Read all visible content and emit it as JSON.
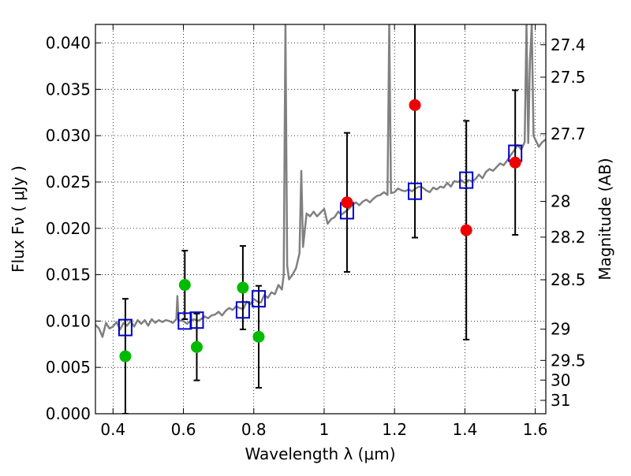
{
  "chart_data": {
    "type": "scatter",
    "xlabel": "Wavelength  λ (μm)",
    "ylabel": "Flux  Fν  ( μJy )",
    "ylabel_right": "Magnitude (AB)",
    "xlim": [
      0.35,
      1.63
    ],
    "ylim": [
      0.0,
      0.042
    ],
    "grid": true,
    "x_ticks": [
      {
        "value": 0.4,
        "label": "0.4"
      },
      {
        "value": 0.6,
        "label": "0.6"
      },
      {
        "value": 0.8,
        "label": "0.8"
      },
      {
        "value": 1.0,
        "label": "1"
      },
      {
        "value": 1.2,
        "label": "1.2"
      },
      {
        "value": 1.4,
        "label": "1.4"
      },
      {
        "value": 1.6,
        "label": "1.6"
      }
    ],
    "y_ticks": [
      {
        "value": 0.0,
        "label": "0.000"
      },
      {
        "value": 0.005,
        "label": "0.005"
      },
      {
        "value": 0.01,
        "label": "0.010"
      },
      {
        "value": 0.015,
        "label": "0.015"
      },
      {
        "value": 0.02,
        "label": "0.020"
      },
      {
        "value": 0.025,
        "label": "0.025"
      },
      {
        "value": 0.03,
        "label": "0.030"
      },
      {
        "value": 0.035,
        "label": "0.035"
      },
      {
        "value": 0.04,
        "label": "0.040"
      }
    ],
    "mag_ticks": [
      {
        "mag": 27.4,
        "label": "27.4"
      },
      {
        "mag": 27.5,
        "label": "27.5"
      },
      {
        "mag": 27.7,
        "label": "27.7"
      },
      {
        "mag": 28,
        "label": "28"
      },
      {
        "mag": 28.2,
        "label": "28.2"
      },
      {
        "mag": 28.5,
        "label": "28.5"
      },
      {
        "mag": 29,
        "label": "29"
      },
      {
        "mag": 29.5,
        "label": "29.5"
      },
      {
        "mag": 30,
        "label": "30"
      },
      {
        "mag": 31,
        "label": "31"
      }
    ],
    "colors": {
      "model": "#808080",
      "synthetic": "#0000cc",
      "optical": "#00bb00",
      "nir": "#ee0000",
      "errorbar": "#000000"
    },
    "model_spectrum": [
      [
        0.35,
        0.0096
      ],
      [
        0.36,
        0.0092
      ],
      [
        0.37,
        0.0083
      ],
      [
        0.38,
        0.0098
      ],
      [
        0.39,
        0.0092
      ],
      [
        0.4,
        0.0094
      ],
      [
        0.41,
        0.0099
      ],
      [
        0.42,
        0.0091
      ],
      [
        0.43,
        0.0098
      ],
      [
        0.44,
        0.0095
      ],
      [
        0.45,
        0.01
      ],
      [
        0.46,
        0.0094
      ],
      [
        0.47,
        0.0101
      ],
      [
        0.48,
        0.0097
      ],
      [
        0.49,
        0.0101
      ],
      [
        0.5,
        0.0095
      ],
      [
        0.51,
        0.0102
      ],
      [
        0.52,
        0.0098
      ],
      [
        0.53,
        0.0101
      ],
      [
        0.54,
        0.0099
      ],
      [
        0.55,
        0.0101
      ],
      [
        0.56,
        0.01
      ],
      [
        0.57,
        0.0098
      ],
      [
        0.58,
        0.0102
      ],
      [
        0.583,
        0.0127
      ],
      [
        0.586,
        0.0101
      ],
      [
        0.6,
        0.01
      ],
      [
        0.61,
        0.0097
      ],
      [
        0.62,
        0.01
      ],
      [
        0.63,
        0.0102
      ],
      [
        0.64,
        0.01
      ],
      [
        0.65,
        0.0102
      ],
      [
        0.66,
        0.0105
      ],
      [
        0.67,
        0.0103
      ],
      [
        0.68,
        0.0106
      ],
      [
        0.69,
        0.0107
      ],
      [
        0.7,
        0.011
      ],
      [
        0.71,
        0.0106
      ],
      [
        0.72,
        0.0111
      ],
      [
        0.73,
        0.0114
      ],
      [
        0.74,
        0.0112
      ],
      [
        0.75,
        0.0116
      ],
      [
        0.76,
        0.0114
      ],
      [
        0.77,
        0.0113
      ],
      [
        0.78,
        0.0121
      ],
      [
        0.79,
        0.0118
      ],
      [
        0.8,
        0.0124
      ],
      [
        0.81,
        0.0121
      ],
      [
        0.82,
        0.012
      ],
      [
        0.83,
        0.0128
      ],
      [
        0.84,
        0.0125
      ],
      [
        0.85,
        0.0131
      ],
      [
        0.86,
        0.0129
      ],
      [
        0.87,
        0.0139
      ],
      [
        0.88,
        0.0134
      ],
      [
        0.885,
        0.015
      ],
      [
        0.89,
        0.042
      ],
      [
        0.895,
        0.016
      ],
      [
        0.9,
        0.0145
      ],
      [
        0.91,
        0.015
      ],
      [
        0.92,
        0.0157
      ],
      [
        0.93,
        0.0173
      ],
      [
        0.935,
        0.0262
      ],
      [
        0.94,
        0.018
      ],
      [
        0.95,
        0.0216
      ],
      [
        0.96,
        0.0213
      ],
      [
        0.97,
        0.0218
      ],
      [
        0.98,
        0.0213
      ],
      [
        0.99,
        0.0217
      ],
      [
        1.0,
        0.0221
      ],
      [
        1.01,
        0.0205
      ],
      [
        1.02,
        0.021
      ],
      [
        1.03,
        0.0212
      ],
      [
        1.04,
        0.0218
      ],
      [
        1.05,
        0.0215
      ],
      [
        1.06,
        0.0218
      ],
      [
        1.07,
        0.0221
      ],
      [
        1.08,
        0.0225
      ],
      [
        1.09,
        0.0228
      ],
      [
        1.1,
        0.0225
      ],
      [
        1.11,
        0.0229
      ],
      [
        1.12,
        0.0231
      ],
      [
        1.13,
        0.0228
      ],
      [
        1.14,
        0.0232
      ],
      [
        1.15,
        0.0235
      ],
      [
        1.16,
        0.0236
      ],
      [
        1.17,
        0.0239
      ],
      [
        1.18,
        0.0236
      ],
      [
        1.185,
        0.042
      ],
      [
        1.19,
        0.0238
      ],
      [
        1.2,
        0.0239
      ],
      [
        1.21,
        0.0243
      ],
      [
        1.22,
        0.0241
      ],
      [
        1.23,
        0.024
      ],
      [
        1.24,
        0.0242
      ],
      [
        1.25,
        0.024
      ],
      [
        1.26,
        0.0243
      ],
      [
        1.27,
        0.0245
      ],
      [
        1.28,
        0.0244
      ],
      [
        1.29,
        0.0241
      ],
      [
        1.3,
        0.0239
      ],
      [
        1.31,
        0.0244
      ],
      [
        1.32,
        0.0242
      ],
      [
        1.33,
        0.0245
      ],
      [
        1.34,
        0.0244
      ],
      [
        1.35,
        0.0249
      ],
      [
        1.36,
        0.0245
      ],
      [
        1.37,
        0.0251
      ],
      [
        1.38,
        0.025
      ],
      [
        1.39,
        0.0252
      ],
      [
        1.4,
        0.0249
      ],
      [
        1.41,
        0.0252
      ],
      [
        1.42,
        0.0251
      ],
      [
        1.43,
        0.0253
      ],
      [
        1.44,
        0.0258
      ],
      [
        1.45,
        0.0254
      ],
      [
        1.46,
        0.0261
      ],
      [
        1.47,
        0.0264
      ],
      [
        1.48,
        0.0262
      ],
      [
        1.49,
        0.0266
      ],
      [
        1.5,
        0.027
      ],
      [
        1.51,
        0.0268
      ],
      [
        1.52,
        0.0273
      ],
      [
        1.53,
        0.0279
      ],
      [
        1.54,
        0.0284
      ],
      [
        1.55,
        0.029
      ],
      [
        1.56,
        0.0285
      ],
      [
        1.57,
        0.0293
      ],
      [
        1.575,
        0.042
      ],
      [
        1.58,
        0.0292
      ],
      [
        1.585,
        0.038
      ],
      [
        1.59,
        0.042
      ],
      [
        1.595,
        0.03
      ],
      [
        1.6,
        0.0296
      ],
      [
        1.61,
        0.0288
      ],
      [
        1.62,
        0.0293
      ],
      [
        1.63,
        0.0296
      ]
    ],
    "synthetic_photometry": [
      {
        "x": 0.435,
        "y": 0.0093
      },
      {
        "x": 0.604,
        "y": 0.01
      },
      {
        "x": 0.638,
        "y": 0.0101
      },
      {
        "x": 0.769,
        "y": 0.0112
      },
      {
        "x": 0.814,
        "y": 0.0124
      },
      {
        "x": 1.065,
        "y": 0.0219
      },
      {
        "x": 1.258,
        "y": 0.024
      },
      {
        "x": 1.404,
        "y": 0.0252
      },
      {
        "x": 1.543,
        "y": 0.0281
      }
    ],
    "optical_photometry": [
      {
        "x": 0.435,
        "y": 0.0062,
        "err": 0.0062
      },
      {
        "x": 0.604,
        "y": 0.0139,
        "err": 0.0037
      },
      {
        "x": 0.638,
        "y": 0.0072,
        "err": 0.0036
      },
      {
        "x": 0.769,
        "y": 0.0136,
        "err": 0.0045
      },
      {
        "x": 0.814,
        "y": 0.0083,
        "err": 0.0055
      }
    ],
    "nir_photometry": [
      {
        "x": 1.065,
        "y": 0.0228,
        "err": 0.0075
      },
      {
        "x": 1.258,
        "y": 0.0333,
        "err": 0.0143
      },
      {
        "x": 1.404,
        "y": 0.0198,
        "err": 0.0118
      },
      {
        "x": 1.543,
        "y": 0.0271,
        "err": 0.0078
      }
    ]
  }
}
